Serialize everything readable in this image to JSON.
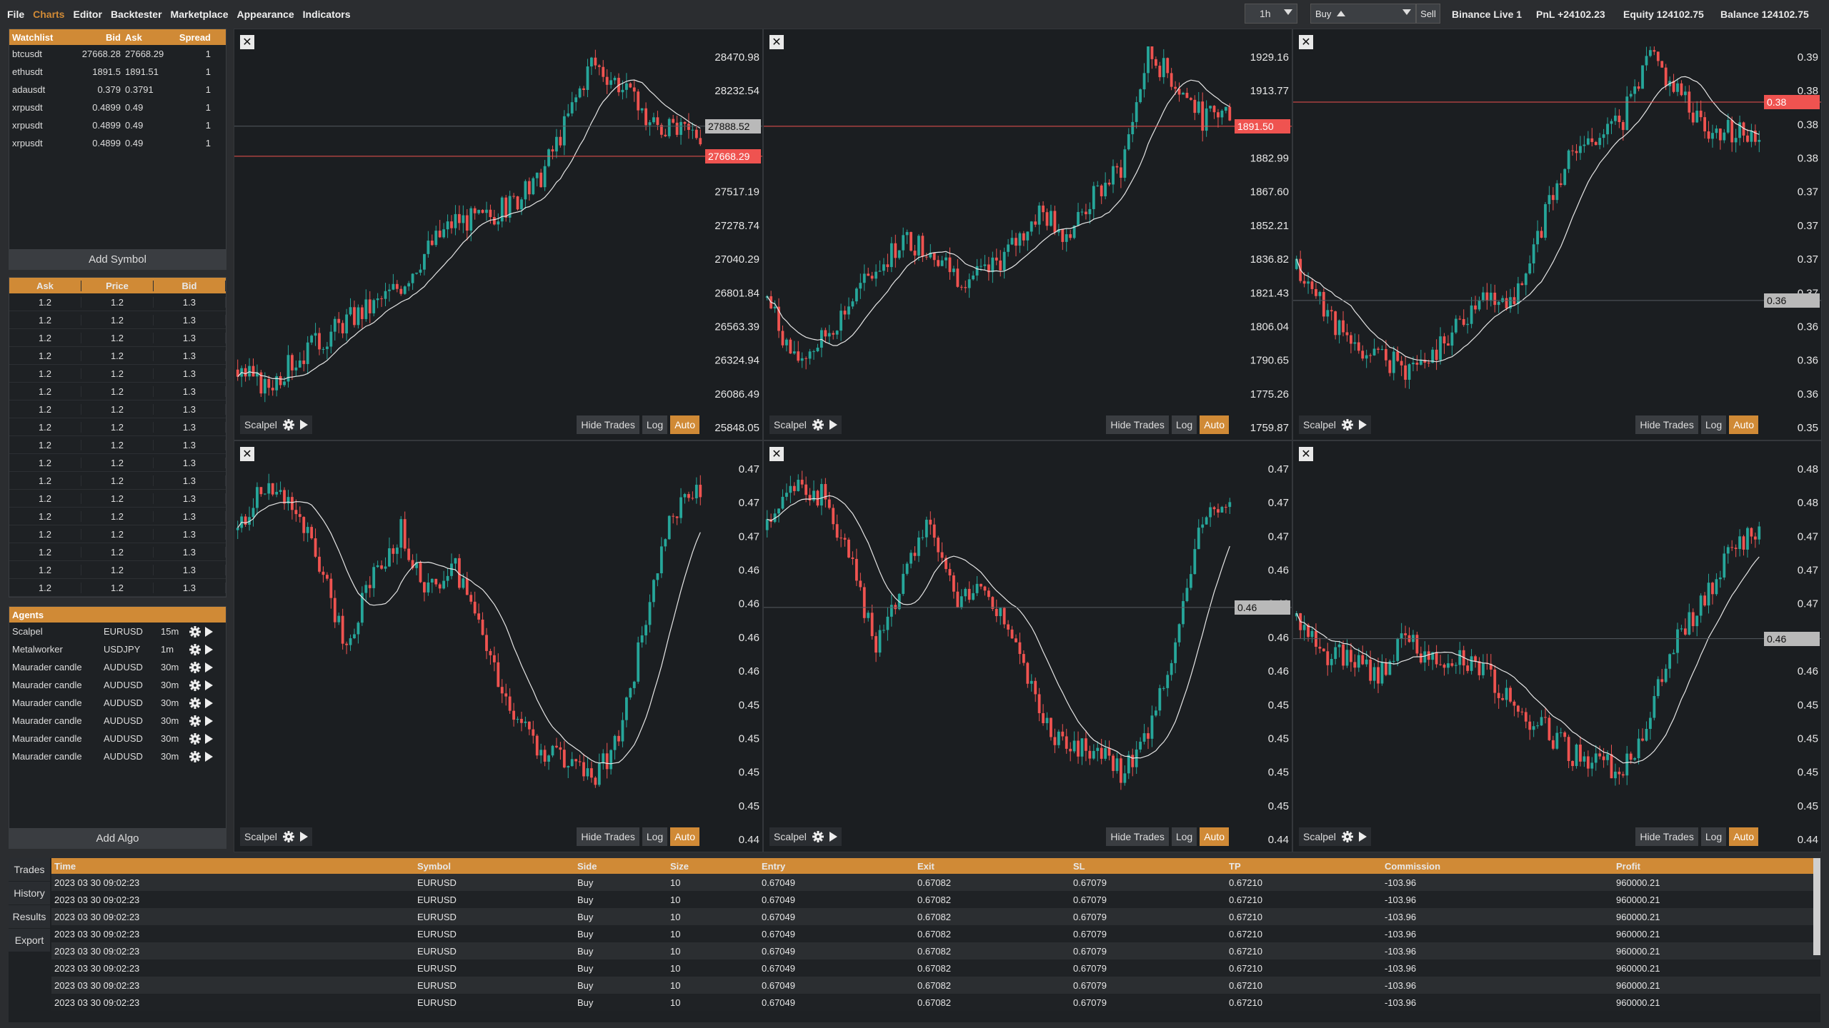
{
  "menu": [
    "File",
    "Charts",
    "Editor",
    "Backtester",
    "Marketplace",
    "Appearance",
    "Indicators"
  ],
  "menu_active": "Charts",
  "toolbar": {
    "timeframe": "1h",
    "side": "Buy",
    "sell_label": "Sell",
    "account": "Binance Live 1",
    "pnl": "PnL +24102.23",
    "equity": "Equity 124102.75",
    "balance": "Balance 124102.75"
  },
  "watchlist": {
    "headers": [
      "Watchlist",
      "Bid",
      "Ask",
      "Spread"
    ],
    "rows": [
      [
        "btcusdt",
        "27668.28",
        "27668.29",
        "1"
      ],
      [
        "ethusdt",
        "1891.5",
        "1891.51",
        "1"
      ],
      [
        "adausdt",
        "0.379",
        "0.3791",
        "1"
      ],
      [
        "xrpusdt",
        "0.4899",
        "0.49",
        "1"
      ],
      [
        "xrpusdt",
        "0.4899",
        "0.49",
        "1"
      ],
      [
        "xrpusdt",
        "0.4899",
        "0.49",
        "1"
      ]
    ],
    "add_label": "Add Symbol"
  },
  "orderbook": {
    "headers": [
      "Ask",
      "Price",
      "Bid"
    ],
    "rows": [
      [
        "1.2",
        "1.2",
        "1.3"
      ],
      [
        "1.2",
        "1.2",
        "1.3"
      ],
      [
        "1.2",
        "1.2",
        "1.3"
      ],
      [
        "1.2",
        "1.2",
        "1.3"
      ],
      [
        "1.2",
        "1.2",
        "1.3"
      ],
      [
        "1.2",
        "1.2",
        "1.3"
      ],
      [
        "1.2",
        "1.2",
        "1.3"
      ],
      [
        "1.2",
        "1.2",
        "1.3"
      ],
      [
        "1.2",
        "1.2",
        "1.3"
      ],
      [
        "1.2",
        "1.2",
        "1.3"
      ],
      [
        "1.2",
        "1.2",
        "1.3"
      ],
      [
        "1.2",
        "1.2",
        "1.3"
      ],
      [
        "1.2",
        "1.2",
        "1.3"
      ],
      [
        "1.2",
        "1.2",
        "1.3"
      ],
      [
        "1.2",
        "1.2",
        "1.3"
      ],
      [
        "1.2",
        "1.2",
        "1.3"
      ],
      [
        "1.2",
        "1.2",
        "1.3"
      ]
    ]
  },
  "agents": {
    "title": "Agents",
    "rows": [
      [
        "Scalpel",
        "EURUSD",
        "15m"
      ],
      [
        "Metalworker",
        "USDJPY",
        "1m"
      ],
      [
        "Maurader candle",
        "AUDUSD",
        "30m"
      ],
      [
        "Maurader candle",
        "AUDUSD",
        "30m"
      ],
      [
        "Maurader candle",
        "AUDUSD",
        "30m"
      ],
      [
        "Maurader candle",
        "AUDUSD",
        "30m"
      ],
      [
        "Maurader candle",
        "AUDUSD",
        "30m"
      ],
      [
        "Maurader candle",
        "AUDUSD",
        "30m"
      ]
    ],
    "add_label": "Add Algo"
  },
  "chart_buttons": {
    "algo": "Scalpel",
    "hide_trades": "Hide Trades",
    "log": "Log",
    "auto": "Auto",
    "close": "✕"
  },
  "chart_data": [
    {
      "type": "candlestick",
      "ticks": [
        "28470.98",
        "28232.54",
        "27994.09",
        "27755.64",
        "27517.19",
        "27278.74",
        "27040.29",
        "26801.84",
        "26563.39",
        "26324.94",
        "26086.49",
        "25848.05"
      ],
      "ylim": [
        25848.05,
        28470.98
      ],
      "last_price": "27668.29",
      "last_value": 27668.29,
      "cursor_price": "27888.52",
      "cursor_value": 27888.52,
      "seed": 3,
      "path": [
        0.1,
        0.05,
        0.12,
        0.18,
        0.24,
        0.28,
        0.34,
        0.44,
        0.52,
        0.52,
        0.56,
        0.62,
        0.78,
        0.96,
        0.9,
        0.8,
        0.76,
        0.76
      ]
    },
    {
      "type": "candlestick",
      "ticks": [
        "1929.16",
        "1913.77",
        "1898.38",
        "1882.99",
        "1867.60",
        "1852.21",
        "1836.82",
        "1821.43",
        "1806.04",
        "1790.65",
        "1775.26",
        "1759.87"
      ],
      "ylim": [
        1759.87,
        1929.16
      ],
      "last_price": "1891.50",
      "last_value": 1891.5,
      "seed": 7,
      "path": [
        0.3,
        0.12,
        0.18,
        0.28,
        0.38,
        0.46,
        0.44,
        0.36,
        0.36,
        0.44,
        0.54,
        0.48,
        0.58,
        0.66,
        0.98,
        0.9,
        0.8,
        0.82
      ]
    },
    {
      "type": "candlestick",
      "ticks": [
        "0.39",
        "0.38",
        "0.38",
        "0.38",
        "0.37",
        "0.37",
        "0.37",
        "0.37",
        "0.36",
        "0.36",
        "0.36",
        "0.35"
      ],
      "ylim": [
        0.35,
        0.39
      ],
      "last_price": "0.38",
      "last_value": 0.3838,
      "cursor_price": "0.36",
      "cursor_value": 0.3617,
      "seed": 11,
      "path": [
        0.38,
        0.28,
        0.16,
        0.14,
        0.1,
        0.14,
        0.24,
        0.3,
        0.3,
        0.5,
        0.7,
        0.76,
        0.8,
        0.98,
        0.88,
        0.78,
        0.76,
        0.76
      ]
    },
    {
      "type": "candlestick",
      "ticks": [
        "0.47",
        "0.47",
        "0.47",
        "0.46",
        "0.46",
        "0.46",
        "0.46",
        "0.45",
        "0.45",
        "0.45",
        "0.45",
        "0.44"
      ],
      "ylim": [
        0.44,
        0.473
      ],
      "seed": 19,
      "path": [
        0.8,
        0.92,
        0.88,
        0.7,
        0.48,
        0.68,
        0.8,
        0.62,
        0.7,
        0.52,
        0.3,
        0.2,
        0.16,
        0.1,
        0.22,
        0.55,
        0.85,
        0.9
      ]
    },
    {
      "type": "candlestick",
      "ticks": [
        "0.47",
        "0.47",
        "0.47",
        "0.46",
        "0.46",
        "0.46",
        "0.46",
        "0.45",
        "0.45",
        "0.45",
        "0.45",
        "0.44"
      ],
      "ylim": [
        0.44,
        0.473
      ],
      "cursor_price": "0.46",
      "cursor_value": 0.4593,
      "seed": 23,
      "path": [
        0.8,
        0.92,
        0.9,
        0.72,
        0.48,
        0.66,
        0.84,
        0.6,
        0.66,
        0.5,
        0.3,
        0.18,
        0.2,
        0.12,
        0.24,
        0.5,
        0.82,
        0.88
      ]
    },
    {
      "type": "candlestick",
      "ticks": [
        "0.48",
        "0.48",
        "0.47",
        "0.47",
        "0.47",
        "0.46",
        "0.46",
        "0.45",
        "0.45",
        "0.45",
        "0.45",
        "0.44"
      ],
      "ylim": [
        0.44,
        0.483
      ],
      "cursor_price": "0.46",
      "cursor_value": 0.4614,
      "seed": 31,
      "path": [
        0.56,
        0.46,
        0.44,
        0.4,
        0.5,
        0.44,
        0.46,
        0.4,
        0.3,
        0.26,
        0.18,
        0.16,
        0.12,
        0.3,
        0.5,
        0.6,
        0.74,
        0.8
      ]
    }
  ],
  "bottom": {
    "tabs": [
      "Trades",
      "History",
      "Results",
      "Export"
    ],
    "headers": [
      "Time",
      "Symbol",
      "Side",
      "Size",
      "Entry",
      "Exit",
      "SL",
      "TP",
      "Commission",
      "Profit"
    ],
    "rows": [
      [
        "2023 03 30 09:02:23",
        "EURUSD",
        "Buy",
        "10",
        "0.67049",
        "0.67082",
        "0.67079",
        "0.67210",
        "-103.96",
        "960000.21"
      ],
      [
        "2023 03 30 09:02:23",
        "EURUSD",
        "Buy",
        "10",
        "0.67049",
        "0.67082",
        "0.67079",
        "0.67210",
        "-103.96",
        "960000.21"
      ],
      [
        "2023 03 30 09:02:23",
        "EURUSD",
        "Buy",
        "10",
        "0.67049",
        "0.67082",
        "0.67079",
        "0.67210",
        "-103.96",
        "960000.21"
      ],
      [
        "2023 03 30 09:02:23",
        "EURUSD",
        "Buy",
        "10",
        "0.67049",
        "0.67082",
        "0.67079",
        "0.67210",
        "-103.96",
        "960000.21"
      ],
      [
        "2023 03 30 09:02:23",
        "EURUSD",
        "Buy",
        "10",
        "0.67049",
        "0.67082",
        "0.67079",
        "0.67210",
        "-103.96",
        "960000.21"
      ],
      [
        "2023 03 30 09:02:23",
        "EURUSD",
        "Buy",
        "10",
        "0.67049",
        "0.67082",
        "0.67079",
        "0.67210",
        "-103.96",
        "960000.21"
      ],
      [
        "2023 03 30 09:02:23",
        "EURUSD",
        "Buy",
        "10",
        "0.67049",
        "0.67082",
        "0.67079",
        "0.67210",
        "-103.96",
        "960000.21"
      ],
      [
        "2023 03 30 09:02:23",
        "EURUSD",
        "Buy",
        "10",
        "0.67049",
        "0.67082",
        "0.67079",
        "0.67210",
        "-103.96",
        "960000.21"
      ]
    ]
  },
  "colors": {
    "accent": "#d08a36",
    "up": "#26a69a",
    "down": "#ef5350",
    "bg": "#1b1e21"
  }
}
